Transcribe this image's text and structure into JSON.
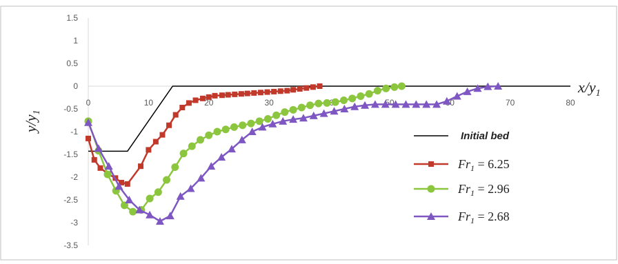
{
  "chart_data": {
    "type": "line",
    "title": "",
    "xlabel": "x/y",
    "xlabel_sub": "1",
    "ylabel": "y/y",
    "ylabel_sub": "1",
    "xlim": [
      0,
      80
    ],
    "ylim": [
      -3.5,
      1.5
    ],
    "x_ticks": [
      0,
      10,
      20,
      30,
      40,
      50,
      60,
      70,
      80
    ],
    "y_ticks": [
      1.5,
      1,
      0.5,
      0,
      -0.5,
      -1,
      -1.5,
      -2,
      -2.5,
      -3,
      -3.5
    ],
    "y_tick_labels": [
      "1.5",
      "1",
      "0.5",
      "0",
      "-0.5",
      "-1",
      "-1.5",
      "-2",
      "-2.5",
      "-3",
      "-3.5"
    ],
    "grid": false,
    "legend_position": "right",
    "series": [
      {
        "name": "Initial bed",
        "color": "#000000",
        "marker": "none",
        "x": [
          0,
          6.5,
          14,
          15,
          80
        ],
        "y": [
          -1.43,
          -1.43,
          0,
          0,
          0
        ]
      },
      {
        "name": "Fr",
        "name_sub": "1",
        "name_value": " = 6.25",
        "color": "#c0392b",
        "marker": "square",
        "x": [
          0,
          1,
          2,
          3.3,
          4.5,
          5.5,
          6.5,
          8.7,
          10,
          11.2,
          12.3,
          13.4,
          14.5,
          15.6,
          16.7,
          17.8,
          19,
          20,
          21,
          22.2,
          23.2,
          24.3,
          25.4,
          26.4,
          27.5,
          28.6,
          29.7,
          30.8,
          31.9,
          33,
          34,
          35.1,
          36.2,
          37.3,
          38.4
        ],
        "y": [
          -1.15,
          -1.62,
          -1.8,
          -1.93,
          -2.02,
          -2.12,
          -2.15,
          -1.76,
          -1.4,
          -1.22,
          -1.07,
          -0.86,
          -0.63,
          -0.47,
          -0.37,
          -0.31,
          -0.27,
          -0.24,
          -0.21,
          -0.2,
          -0.19,
          -0.18,
          -0.17,
          -0.16,
          -0.15,
          -0.14,
          -0.13,
          -0.12,
          -0.11,
          -0.1,
          -0.08,
          -0.06,
          -0.04,
          -0.02,
          0.0
        ]
      },
      {
        "name": "Fr",
        "name_sub": "1",
        "name_value": " = 2.96",
        "color": "#8cc63f",
        "marker": "circle",
        "x": [
          0,
          1.7,
          3.2,
          4.6,
          6,
          7.4,
          8.8,
          10.2,
          11.6,
          13,
          14.4,
          15.8,
          17.2,
          18.6,
          20,
          21.4,
          22.8,
          24.2,
          25.6,
          27,
          28.4,
          29.8,
          31.2,
          32.6,
          34,
          35.4,
          36.8,
          38.2,
          39.6,
          41,
          42.4,
          43.8,
          45.2,
          46.6,
          48,
          49.4,
          50.8,
          52
        ],
        "y": [
          -0.77,
          -1.42,
          -1.94,
          -2.3,
          -2.62,
          -2.76,
          -2.72,
          -2.47,
          -2.33,
          -2.06,
          -1.78,
          -1.48,
          -1.32,
          -1.18,
          -1.08,
          -1.0,
          -0.95,
          -0.9,
          -0.86,
          -0.82,
          -0.77,
          -0.72,
          -0.64,
          -0.57,
          -0.52,
          -0.47,
          -0.42,
          -0.38,
          -0.37,
          -0.35,
          -0.31,
          -0.27,
          -0.22,
          -0.17,
          -0.1,
          -0.05,
          -0.02,
          0.0
        ]
      },
      {
        "name": "Fr",
        "name_sub": "1",
        "name_value": " = 2.68",
        "color": "#7e57c2",
        "marker": "triangle",
        "x": [
          0,
          1.7,
          3.4,
          5.1,
          6.8,
          8.5,
          10.2,
          11.9,
          13.6,
          15.3,
          17,
          18.7,
          20.4,
          22.1,
          23.8,
          25.5,
          27.2,
          28.9,
          30.6,
          32.3,
          34,
          35.7,
          37.4,
          39.1,
          40.8,
          42.5,
          44.2,
          45.9,
          47.6,
          49.3,
          51,
          52.7,
          54.4,
          56.1,
          57.8,
          59.5,
          61.2,
          62.9,
          64.6,
          66.3,
          68
        ],
        "y": [
          -0.8,
          -1.37,
          -1.76,
          -2.2,
          -2.5,
          -2.72,
          -2.83,
          -2.97,
          -2.85,
          -2.42,
          -2.25,
          -2.02,
          -1.76,
          -1.56,
          -1.38,
          -1.18,
          -1.0,
          -0.9,
          -0.83,
          -0.77,
          -0.73,
          -0.7,
          -0.65,
          -0.6,
          -0.55,
          -0.5,
          -0.45,
          -0.42,
          -0.4,
          -0.4,
          -0.4,
          -0.4,
          -0.4,
          -0.4,
          -0.4,
          -0.33,
          -0.22,
          -0.12,
          -0.05,
          -0.01,
          0.0
        ]
      }
    ]
  }
}
